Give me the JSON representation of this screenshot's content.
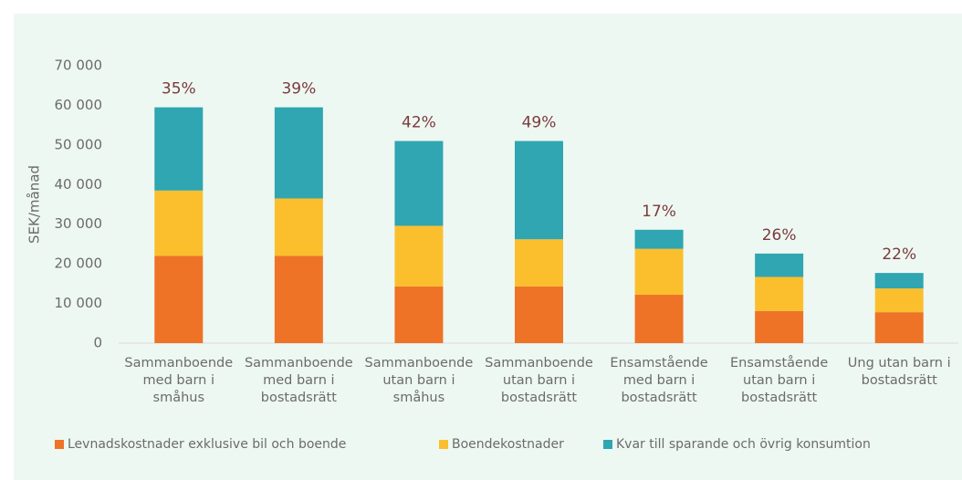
{
  "chart_data": {
    "type": "stacked-bar",
    "y_label": "SEK/månad",
    "categories": [
      "Sammanboende med barn i småhus",
      "Sammanboende med barn i bostadsrätt",
      "Sammanboende utan barn i småhus",
      "Sammanboende utan barn i bostadsrätt",
      "Ensamstående med barn i bostadsrätt",
      "Ensamstående utan barn i bostadsrätt",
      "Ung utan barn i bostadsrätt"
    ],
    "series": [
      {
        "name": "Levnadskostnader exklusive bil och boende",
        "color": "#ee7326",
        "values": [
          22000,
          22000,
          14300,
          14300,
          12200,
          8100,
          7800
        ]
      },
      {
        "name": "Boendekostnader",
        "color": "#fbbf2e",
        "values": [
          16500,
          14500,
          15300,
          11900,
          11600,
          8600,
          6000
        ]
      },
      {
        "name": "Kvar till sparande och övrig konsumtion",
        "color": "#2fa6b1",
        "values": [
          21000,
          23000,
          21400,
          24800,
          4800,
          5900,
          3900
        ]
      }
    ],
    "shares": {
      "values": [
        35,
        39,
        42,
        49,
        17,
        26,
        22
      ],
      "value_labels": [
        "35%",
        "39%",
        "42%",
        "49%",
        "17%",
        "26%",
        "22%"
      ]
    },
    "ylim": [
      0,
      70000
    ],
    "yticks": [
      0,
      {
        "value": 10000,
        "label": "10 000"
      },
      {
        "value": 20000,
        "label": "20 000"
      },
      {
        "value": 30000,
        "label": "30 000"
      },
      {
        "value": 40000,
        "label": "40 000"
      },
      {
        "value": 50000,
        "label": "50 000"
      },
      {
        "value": 60000,
        "label": "60 000"
      },
      {
        "value": 70000,
        "label": "70 000"
      }
    ],
    "grid": false
  }
}
